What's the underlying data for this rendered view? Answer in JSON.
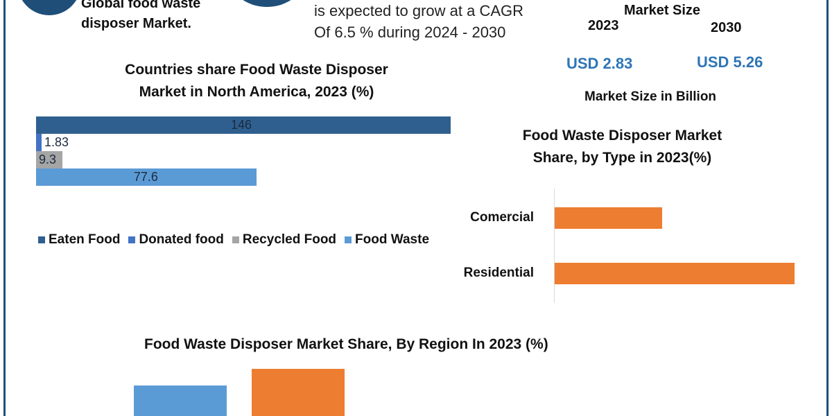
{
  "intro": {
    "left_line1": "Global food waste",
    "left_line2": "disposer Market.",
    "right_line1": "is expected to grow at a CAGR",
    "right_line2": "Of 6.5 % during 2024 - 2030"
  },
  "market_size": {
    "title": "Market Size",
    "year_a": "2023",
    "year_b": "2030",
    "value_a": "USD 2.83",
    "value_b": "USD 5.26",
    "unit": "Market Size in Billion",
    "value_color": "#2e75b6"
  },
  "chart_data": [
    {
      "type": "bar",
      "orientation": "horizontal",
      "title": "Countries share Food Waste Disposer Market in North America, 2023 (%)",
      "title_line1": "Countries share Food Waste Disposer",
      "title_line2": "Market in North America, 2023 (%)",
      "series": [
        {
          "name": "Eaten Food",
          "value": 146,
          "label": "146",
          "color": "#2f5f8f"
        },
        {
          "name": "Donated food",
          "value": 1.83,
          "label": "1.83",
          "color": "#4472c4"
        },
        {
          "name": "Recycled Food",
          "value": 9.3,
          "label": "9.3",
          "color": "#a5a5a5"
        },
        {
          "name": "Food Waste",
          "value": 77.6,
          "label": "77.6",
          "color": "#5b9bd5"
        }
      ],
      "legend": "bottom"
    },
    {
      "type": "bar",
      "orientation": "horizontal",
      "title": "Food Waste Disposer Market Share, by Type in 2023(%)",
      "title_line1": "Food Waste Disposer Market",
      "title_line2": "Share, by Type in 2023(%)",
      "categories": [
        "Comercial",
        "Residential"
      ],
      "values": [
        31,
        69
      ],
      "xlim": [
        0,
        69
      ],
      "color": "#ed7d31"
    },
    {
      "type": "bar",
      "title": "Food Waste Disposer Market Share, By Region In 2023 (%)",
      "values": [
        22,
        34
      ],
      "colors": [
        "#5b9bd5",
        "#ed7d31"
      ]
    }
  ]
}
